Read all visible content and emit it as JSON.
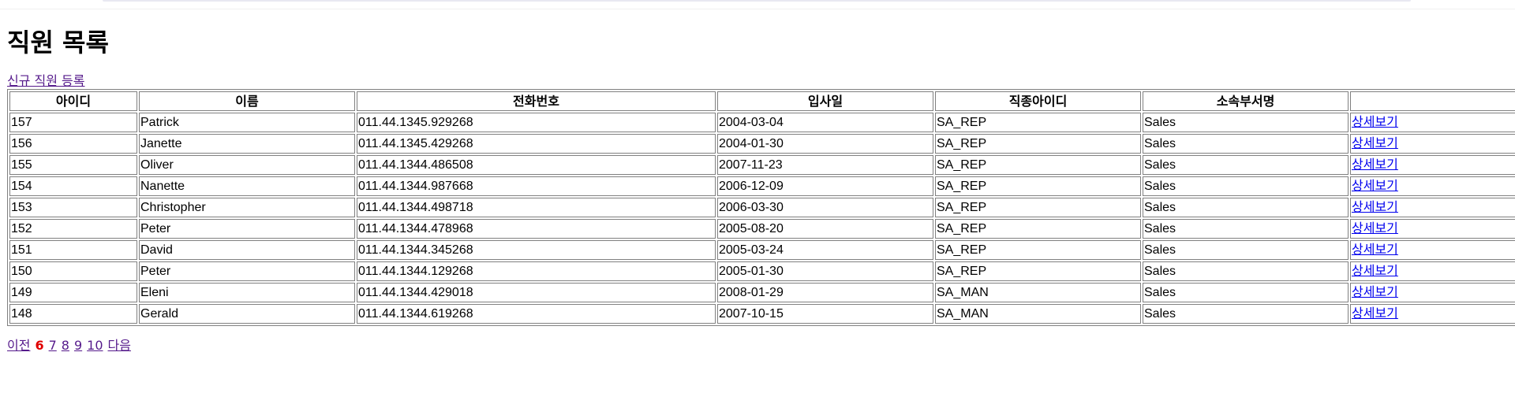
{
  "page": {
    "title": "직원 목록",
    "new_employee_link": "신규 직원 등록"
  },
  "table": {
    "headers": [
      "아이디",
      "이름",
      "전화번호",
      "입사일",
      "직종아이디",
      "소속부서명",
      ""
    ],
    "detail_label": "상세보기",
    "rows": [
      {
        "id": "157",
        "name": "Patrick",
        "phone": "011.44.1345.929268",
        "hire_date": "2004-03-04",
        "job_id": "SA_REP",
        "dept": "Sales"
      },
      {
        "id": "156",
        "name": "Janette",
        "phone": "011.44.1345.429268",
        "hire_date": "2004-01-30",
        "job_id": "SA_REP",
        "dept": "Sales"
      },
      {
        "id": "155",
        "name": "Oliver",
        "phone": "011.44.1344.486508",
        "hire_date": "2007-11-23",
        "job_id": "SA_REP",
        "dept": "Sales"
      },
      {
        "id": "154",
        "name": "Nanette",
        "phone": "011.44.1344.987668",
        "hire_date": "2006-12-09",
        "job_id": "SA_REP",
        "dept": "Sales"
      },
      {
        "id": "153",
        "name": "Christopher",
        "phone": "011.44.1344.498718",
        "hire_date": "2006-03-30",
        "job_id": "SA_REP",
        "dept": "Sales"
      },
      {
        "id": "152",
        "name": "Peter",
        "phone": "011.44.1344.478968",
        "hire_date": "2005-08-20",
        "job_id": "SA_REP",
        "dept": "Sales"
      },
      {
        "id": "151",
        "name": "David",
        "phone": "011.44.1344.345268",
        "hire_date": "2005-03-24",
        "job_id": "SA_REP",
        "dept": "Sales"
      },
      {
        "id": "150",
        "name": "Peter",
        "phone": "011.44.1344.129268",
        "hire_date": "2005-01-30",
        "job_id": "SA_REP",
        "dept": "Sales"
      },
      {
        "id": "149",
        "name": "Eleni",
        "phone": "011.44.1344.429018",
        "hire_date": "2008-01-29",
        "job_id": "SA_MAN",
        "dept": "Sales"
      },
      {
        "id": "148",
        "name": "Gerald",
        "phone": "011.44.1344.619268",
        "hire_date": "2007-10-15",
        "job_id": "SA_MAN",
        "dept": "Sales"
      }
    ]
  },
  "pagination": {
    "prev_label": "이전",
    "current": "6",
    "pages": [
      "7",
      "8",
      "9",
      "10"
    ],
    "next_label": "다음"
  },
  "colors": {
    "visited_link": "#551a8b",
    "link": "#0000ee",
    "current_page": "#e00000",
    "border": "#808080"
  }
}
